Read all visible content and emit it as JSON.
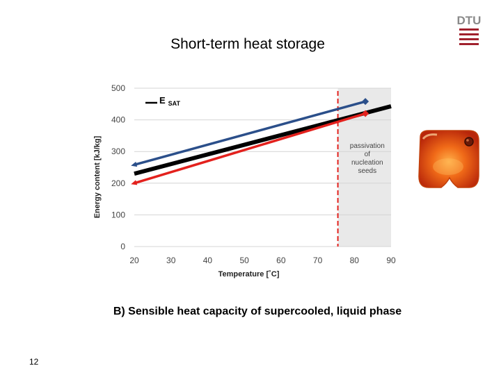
{
  "slide": {
    "title": "Short-term heat storage",
    "caption": "B) Sensible heat capacity of supercooled, liquid phase",
    "page_number": "12",
    "logo_text": "DTU"
  },
  "chart_data": {
    "type": "line",
    "xlabel": "Temperature [˚C]",
    "ylabel": "Energy content [kJ/kg]",
    "xlim": [
      20,
      90
    ],
    "ylim": [
      0,
      500
    ],
    "x_ticks": [
      "20",
      "30",
      "40",
      "50",
      "60",
      "70",
      "80",
      "90"
    ],
    "y_ticks": [
      "0",
      "100",
      "200",
      "300",
      "400",
      "500"
    ],
    "grid": true,
    "series": [
      {
        "name": "E SAT",
        "color": "#000000",
        "x": [
          20,
          90
        ],
        "y": [
          230,
          443
        ]
      },
      {
        "color": "#2b4f8a",
        "x": [
          20,
          83
        ],
        "y": [
          258,
          458
        ]
      },
      {
        "color": "#e3211d",
        "x": [
          20,
          83
        ],
        "y": [
          200,
          420
        ]
      }
    ],
    "legend": {
      "main": "E",
      "sub": "SAT",
      "position": "top-left"
    },
    "shaded_region": {
      "x_start": 75.5,
      "x_end": 90,
      "color": "#e9e9e9"
    },
    "vline": {
      "x": 75.5,
      "color": "#e3211d"
    },
    "annotation": {
      "lines": [
        "passivation",
        "of",
        "nucleation",
        "seeds"
      ]
    }
  },
  "colors": {
    "dtu_red": "#a0202c",
    "pack_orange": "#ee5a12"
  }
}
